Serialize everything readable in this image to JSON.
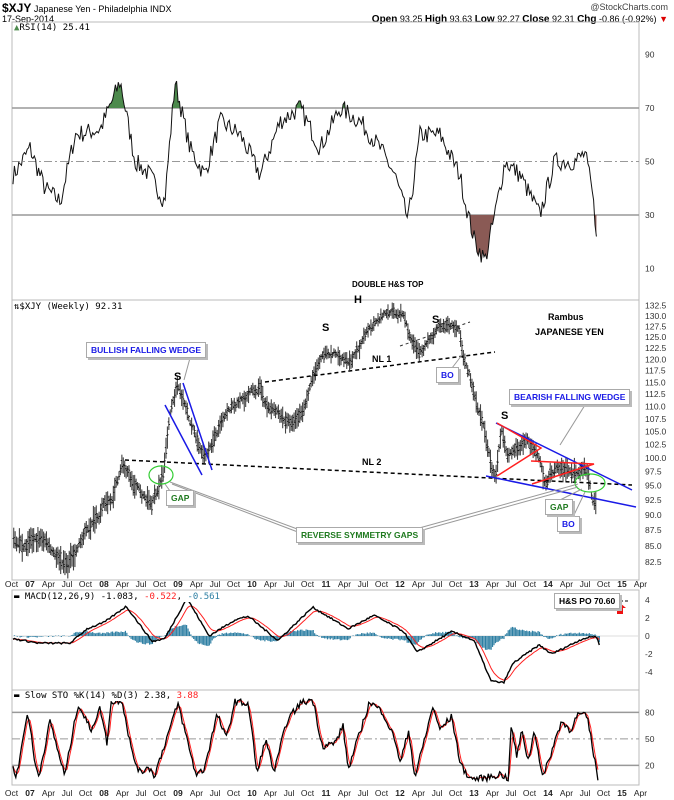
{
  "header": {
    "symbol": "$XJY",
    "name": "Japanese Yen - Philadelphia INDX",
    "date": "17-Sep-2014",
    "watermark": "@StockCharts.com",
    "open_label": "Open",
    "open": "93.25",
    "high_label": "High",
    "high": "93.63",
    "low_label": "Low",
    "low": "92.27",
    "close_label": "Close",
    "close": "92.31",
    "chg_label": "Chg",
    "chg": "-0.86 (-0.92%)",
    "down_arrow": "▼"
  },
  "colors": {
    "price": "#444444",
    "macd": "#000000",
    "signal": "#ff2020",
    "histogram": "#2e7fa3",
    "rsi_high": "#4d8a4d",
    "rsi_low": "#8a5a55",
    "wedge": "#1a1ae6",
    "triangle": "#ff2020",
    "gap": "#33cc33"
  },
  "annotations": {
    "double_top": "DOUBLE H&S TOP",
    "h": "H",
    "s_left_top": "S",
    "s_right_top": "S",
    "s_bullish": "S",
    "s_bearish": "S",
    "nl1": "NL 1",
    "nl2": "NL 2",
    "author": "Rambus",
    "subject": "JAPANESE YEN",
    "bullish_wedge": "BULLISH FALLING WEDGE",
    "bearish_wedge": "BEARISH FALLING WEDGE",
    "bo1": "BO",
    "bo2": "BO",
    "gap1": "GAP",
    "gap2": "GAP",
    "reverse_gaps": "REVERSE SYMMETRY GAPS",
    "po": "H&S PO 70.60"
  },
  "chart_data": [
    {
      "type": "line",
      "title": "RSI(14) 25.41",
      "label_icon": "chart-icon",
      "ylim": [
        0,
        100
      ],
      "yticks": [
        "90",
        "70",
        "50",
        "30",
        "10"
      ],
      "x": [
        2006.78,
        2007.0,
        2007.2,
        2007.41,
        2007.61,
        2007.95,
        2008.22,
        2008.42,
        2008.62,
        2008.82,
        2008.96,
        2009.16,
        2009.36,
        2009.57,
        2009.84,
        2010.11,
        2010.38,
        2010.65,
        2010.92,
        2011.19,
        2011.46,
        2011.73,
        2011.93,
        2012.11,
        2012.27,
        2012.54,
        2012.81,
        2012.88,
        2013.01,
        2013.15,
        2013.28,
        2013.42,
        2013.62,
        2013.89,
        2014.09,
        2014.36,
        2014.5,
        2014.59,
        2014.65
      ],
      "values": [
        45,
        55,
        40,
        35,
        60,
        62,
        80,
        50,
        45,
        35,
        80,
        55,
        45,
        65,
        60,
        45,
        65,
        70,
        55,
        70,
        65,
        55,
        45,
        28,
        60,
        60,
        45,
        35,
        20,
        13,
        30,
        50,
        45,
        30,
        50,
        50,
        53,
        40,
        25
      ]
    },
    {
      "type": "bar",
      "title": "$XJY (Weekly) 92.31",
      "label_icon": "ohlc-icon",
      "scale": "log",
      "ylim": [
        80,
        134
      ],
      "yticks": [
        "132.5",
        "130.0",
        "127.5",
        "125.0",
        "122.5",
        "120.0",
        "117.5",
        "115.0",
        "112.5",
        "110.0",
        "107.5",
        "105.0",
        "102.5",
        "100.0",
        "97.5",
        "95.0",
        "92.5",
        "90.0",
        "87.5",
        "85.0",
        "82.5"
      ],
      "x": [
        2006.78,
        2006.95,
        2007.2,
        2007.5,
        2007.7,
        2007.9,
        2008.1,
        2008.25,
        2008.4,
        2008.55,
        2008.65,
        2008.8,
        2008.9,
        2009.0,
        2009.1,
        2009.25,
        2009.35,
        2009.5,
        2009.75,
        2009.95,
        2010.1,
        2010.2,
        2010.4,
        2010.55,
        2010.7,
        2010.85,
        2011.0,
        2011.2,
        2011.35,
        2011.5,
        2011.6,
        2011.7,
        2011.85,
        2012.05,
        2012.15,
        2012.25,
        2012.4,
        2012.55,
        2012.7,
        2012.8,
        2012.85,
        2012.95,
        2013.05,
        2013.15,
        2013.25,
        2013.3,
        2013.38,
        2013.45,
        2013.6,
        2013.75,
        2013.85,
        2013.95,
        2014.1,
        2014.3,
        2014.5,
        2014.55,
        2014.6
      ],
      "values": [
        86,
        85,
        86,
        82,
        86,
        90,
        93,
        99,
        95,
        93,
        92,
        97,
        109,
        115,
        110,
        104,
        100,
        104,
        110,
        112,
        114,
        110,
        108,
        106,
        110,
        117,
        121,
        121,
        119,
        124,
        127,
        130,
        131,
        130,
        124,
        121,
        125,
        127,
        128,
        126,
        120,
        116,
        109,
        104,
        98,
        97,
        106,
        100,
        102,
        103,
        100,
        95.5,
        98,
        97.5,
        98.5,
        97,
        93
      ]
    },
    {
      "type": "line",
      "title": "MACD(12,26,9)",
      "legend": [
        "-1.083",
        "-0.522",
        "-0.561"
      ],
      "ylim": [
        -5.5,
        4.5
      ],
      "yticks": [
        "4",
        "2",
        "0",
        "-2",
        "-4"
      ],
      "x": [
        2006.77,
        2007.12,
        2007.54,
        2007.77,
        2008.0,
        2008.3,
        2008.65,
        2008.82,
        2009.12,
        2009.42,
        2009.77,
        2009.95,
        2010.35,
        2010.82,
        2011.3,
        2011.65,
        2012.05,
        2012.23,
        2012.7,
        2013.0,
        2013.23,
        2013.4,
        2013.53,
        2013.88,
        2014.05,
        2014.47,
        2014.65,
        2014.7
      ],
      "values": [
        -0.3,
        -0.8,
        -0.8,
        0.8,
        1.5,
        3.3,
        -0.6,
        -0.3,
        4.2,
        0,
        1.8,
        2.2,
        -0.5,
        3.2,
        0.8,
        2.3,
        0.5,
        -1.8,
        0.5,
        -0.5,
        -5,
        -5.2,
        -3,
        -1,
        -2,
        -0.3,
        0,
        -1.1
      ]
    },
    {
      "type": "line",
      "title": "Slow STO %K(14) %D(3)",
      "legend": [
        "2.38",
        "3.88"
      ],
      "ylim": [
        0,
        100
      ],
      "yticks": [
        "80",
        "50",
        "20"
      ],
      "x": [
        2006.77,
        2006.82,
        2006.97,
        2007.07,
        2007.12,
        2007.27,
        2007.47,
        2007.65,
        2007.82,
        2007.95,
        2008.04,
        2008.09,
        2008.24,
        2008.39,
        2008.5,
        2008.59,
        2008.68,
        2009.0,
        2009.24,
        2009.35,
        2009.53,
        2009.65,
        2009.77,
        2009.95,
        2010.07,
        2010.18,
        2010.3,
        2010.47,
        2010.65,
        2010.82,
        2010.95,
        2011.12,
        2011.23,
        2011.3,
        2011.59,
        2011.77,
        2011.95,
        2012.0,
        2012.12,
        2012.2,
        2012.45,
        2012.53,
        2012.7,
        2012.82,
        2012.95,
        2013.12,
        2013.35,
        2013.47,
        2013.5,
        2013.58,
        2013.65,
        2013.73,
        2013.82,
        2013.93,
        2014.18,
        2014.3,
        2014.41,
        2014.53,
        2014.68
      ],
      "values": [
        17,
        8,
        82,
        20,
        8,
        70,
        8,
        90,
        60,
        85,
        45,
        90,
        95,
        30,
        10,
        20,
        8,
        90,
        10,
        15,
        78,
        50,
        92,
        90,
        10,
        50,
        12,
        70,
        90,
        95,
        42,
        45,
        65,
        15,
        92,
        80,
        45,
        22,
        60,
        6,
        88,
        60,
        75,
        20,
        5,
        5,
        10,
        5,
        65,
        30,
        60,
        25,
        60,
        5,
        70,
        60,
        78,
        75,
        3
      ]
    }
  ],
  "x_axis": {
    "start": "Oct 2006",
    "labels": [
      "Oct",
      "07",
      "Apr",
      "Jul",
      "Oct",
      "08",
      "Apr",
      "Jul",
      "Oct",
      "09",
      "Apr",
      "Jul",
      "Oct",
      "10",
      "Apr",
      "Jul",
      "Oct",
      "11",
      "Apr",
      "Jul",
      "Oct",
      "12",
      "Apr",
      "Jul",
      "Oct",
      "13",
      "Apr",
      "Jul",
      "Oct",
      "14",
      "Apr",
      "Jul",
      "Oct",
      "15",
      "Apr"
    ]
  }
}
